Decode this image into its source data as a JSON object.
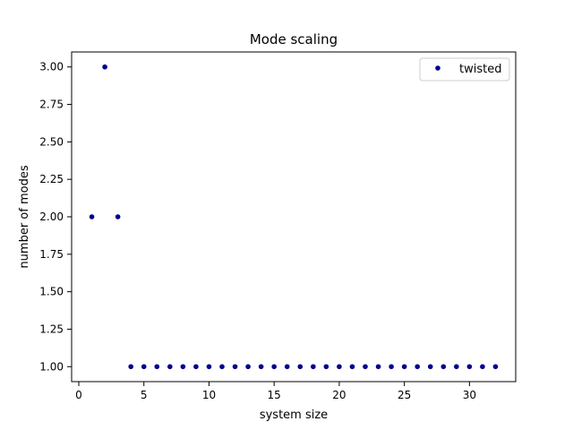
{
  "chart_data": {
    "type": "scatter",
    "title": "Mode scaling",
    "xlabel": "system size",
    "ylabel": "number of modes",
    "xlim": [
      -0.55,
      33.55
    ],
    "ylim": [
      0.9,
      3.1
    ],
    "xticks": [
      0,
      5,
      10,
      15,
      20,
      25,
      30
    ],
    "yticks": [
      1.0,
      1.25,
      1.5,
      1.75,
      2.0,
      2.25,
      2.5,
      2.75,
      3.0
    ],
    "ytick_labels": [
      "1.00",
      "1.25",
      "1.50",
      "1.75",
      "2.00",
      "2.25",
      "2.50",
      "2.75",
      "3.00"
    ],
    "grid": false,
    "legend_position": "top-right",
    "series": [
      {
        "name": "twisted",
        "color": "#00008b",
        "marker": "circle",
        "x": [
          1,
          2,
          3,
          4,
          5,
          6,
          7,
          8,
          9,
          10,
          11,
          12,
          13,
          14,
          15,
          16,
          17,
          18,
          19,
          20,
          21,
          22,
          23,
          24,
          25,
          26,
          27,
          28,
          29,
          30,
          31,
          32
        ],
        "y": [
          2,
          3,
          2,
          1,
          1,
          1,
          1,
          1,
          1,
          1,
          1,
          1,
          1,
          1,
          1,
          1,
          1,
          1,
          1,
          1,
          1,
          1,
          1,
          1,
          1,
          1,
          1,
          1,
          1,
          1,
          1,
          1
        ]
      }
    ]
  }
}
